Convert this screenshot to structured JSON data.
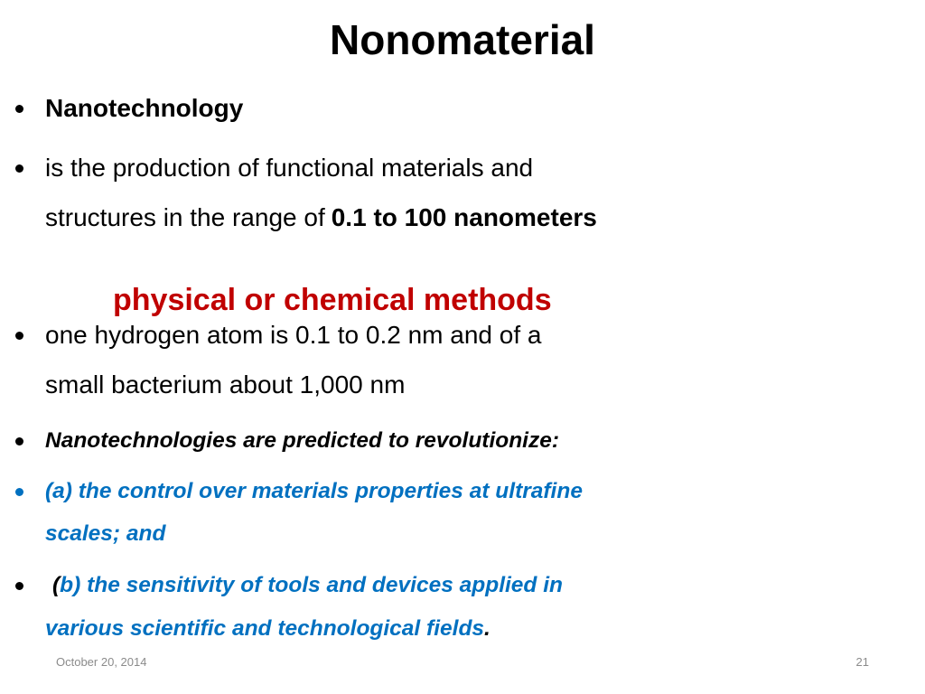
{
  "slide": {
    "title": "Nonomaterial",
    "bullets": [
      {
        "size": "large",
        "lines": [
          [
            {
              "text": "Nanotechnology",
              "style": "bold",
              "color": "#000000"
            }
          ]
        ]
      },
      {
        "size": "large",
        "lines": [
          [
            {
              "text": "is the production of functional materials and",
              "style": "normal",
              "color": "#000000"
            }
          ],
          [
            {
              "text": "structures in the range of",
              "style": "normal",
              "color": "#000000"
            },
            {
              "text": "0.1 to 100 nanometers",
              "style": "bold",
              "color": "#000000"
            }
          ]
        ]
      },
      {
        "size": "large",
        "lines": [
          [
            {
              "text": "one hydrogen atom is 0.1 to 0.2 nm and of a",
              "style": "normal",
              "color": "#000000"
            }
          ],
          [
            {
              "text": "small bacterium about 1,000 nm",
              "style": "normal",
              "color": "#000000"
            }
          ]
        ]
      },
      {
        "size": "small",
        "lines": [
          [
            {
              "text": "Nanotechnologies are predicted to revolutionize:",
              "style": "bold-italic",
              "color": "#000000"
            }
          ]
        ]
      },
      {
        "size": "small",
        "bullet_color": "#0070c0",
        "lines": [
          [
            {
              "text": "(a) the control over materials properties at ultrafine",
              "style": "bold-italic",
              "color": "#0070c0"
            }
          ],
          [
            {
              "text": "scales; and",
              "style": "bold-italic",
              "color": "#0070c0"
            }
          ]
        ]
      },
      {
        "size": "small",
        "lines": [
          [
            {
              "text": "(",
              "style": "bold-italic",
              "color": "#000000"
            },
            {
              "text": "b) the sensitivity of tools and devices applied in",
              "style": "bold-italic",
              "color": "#0070c0"
            }
          ],
          [
            {
              "text": "various scientific and technological fields",
              "style": "bold-italic",
              "color": "#0070c0"
            },
            {
              "text": ".",
              "style": "bold-italic",
              "color": "#000000"
            }
          ]
        ]
      }
    ],
    "overlay": {
      "text": "physical or chemical methods",
      "color": "#c00000"
    },
    "footer": {
      "date": "October 20, 2014",
      "page": "21"
    }
  }
}
